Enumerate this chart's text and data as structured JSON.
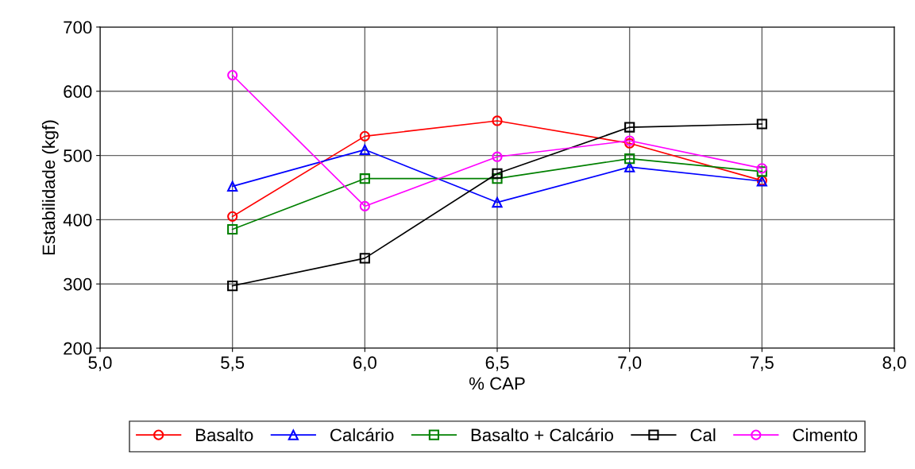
{
  "chart_data": {
    "type": "line",
    "xlabel": "% CAP",
    "ylabel": "Estabilidade (kgf)",
    "x": [
      5.5,
      6.0,
      6.5,
      7.0,
      7.5
    ],
    "xlim": [
      5.0,
      8.0
    ],
    "xticks": [
      {
        "value": 5.0,
        "label": "5,0"
      },
      {
        "value": 5.5,
        "label": "5,5"
      },
      {
        "value": 6.0,
        "label": "6,0"
      },
      {
        "value": 6.5,
        "label": "6,5"
      },
      {
        "value": 7.0,
        "label": "7,0"
      },
      {
        "value": 7.5,
        "label": "7,5"
      },
      {
        "value": 8.0,
        "label": "8,0"
      }
    ],
    "ylim": [
      200,
      700
    ],
    "yticks": [
      200,
      300,
      400,
      500,
      600,
      700
    ],
    "grid": true,
    "legend": "bottom",
    "series": [
      {
        "name": "Basalto",
        "color": "#ff0000",
        "marker": "circle",
        "values": [
          405,
          530,
          554,
          519,
          461
        ]
      },
      {
        "name": "Calcário",
        "color": "#0000ff",
        "marker": "triangle",
        "values": [
          452,
          509,
          427,
          482,
          460
        ]
      },
      {
        "name": "Basalto + Calcário",
        "color": "#008000",
        "marker": "square",
        "values": [
          385,
          464,
          464,
          495,
          475
        ]
      },
      {
        "name": "Cal",
        "color": "#000000",
        "marker": "square",
        "values": [
          297,
          340,
          472,
          544,
          549
        ]
      },
      {
        "name": "Cimento",
        "color": "#ff00ff",
        "marker": "circle",
        "values": [
          625,
          421,
          498,
          523,
          480
        ]
      }
    ]
  }
}
